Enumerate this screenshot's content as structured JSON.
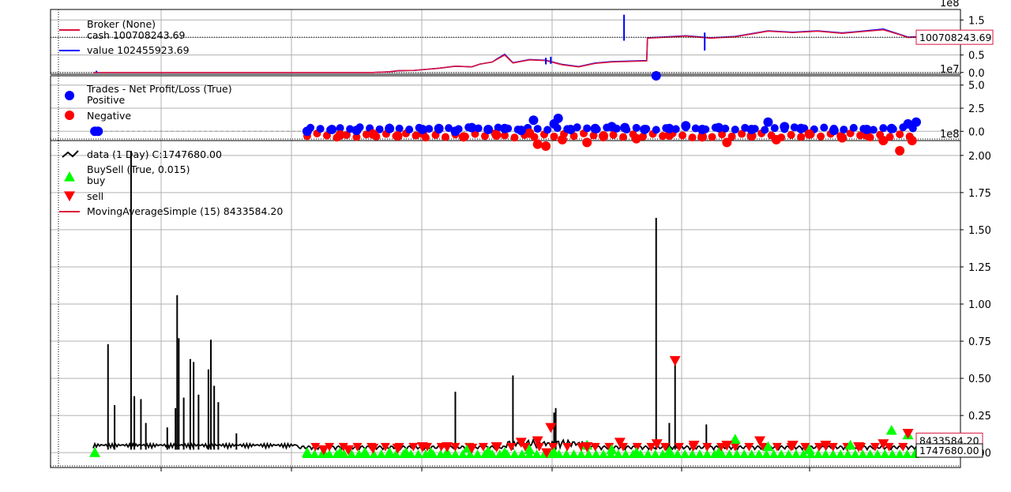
{
  "colors": {
    "cash": "#dc143c",
    "value": "#0000ff",
    "positive": "#0000ff",
    "negative": "#ff0000",
    "price": "#000000",
    "buy": "#00ff00",
    "sell": "#ff0000",
    "sma": "#dc143c",
    "grid": "#b0b0b0"
  },
  "chart_data": [
    {
      "type": "line",
      "panel": "broker",
      "exponent_label": "1e8",
      "ylim": [
        -0.05,
        1.8
      ],
      "yticks": [
        0.0,
        0.5,
        1.0,
        1.5
      ],
      "ytick_labels": [
        "0.0",
        "0.5",
        "1.0",
        "1.5"
      ],
      "grid": true,
      "legend_position": "upper-left",
      "legend_title": "Broker (None)",
      "series": [
        {
          "name": "cash 100708243.69",
          "role": "cash",
          "x": [
            0.0,
            0.08,
            0.14,
            0.2,
            0.26,
            0.3,
            0.34,
            0.36,
            0.37,
            0.39,
            0.42,
            0.44,
            0.46,
            0.47,
            0.485,
            0.49,
            0.5,
            0.51,
            0.53,
            0.55,
            0.57,
            0.59,
            0.61,
            0.63,
            0.6725,
            0.6735,
            0.69,
            0.72,
            0.75,
            0.78,
            0.82,
            0.85,
            0.88,
            0.91,
            0.93,
            0.96,
            0.98,
            0.99,
            1.0
          ],
          "values": [
            0.0,
            0.0,
            0.0,
            0.0,
            0.0,
            0.0,
            0.0,
            0.02,
            0.05,
            0.06,
            0.12,
            0.18,
            0.16,
            0.24,
            0.3,
            0.37,
            0.5,
            0.27,
            0.36,
            0.34,
            0.22,
            0.16,
            0.26,
            0.3,
            0.33,
            0.98,
            1.0,
            1.04,
            0.98,
            1.02,
            1.18,
            1.14,
            1.18,
            1.12,
            1.16,
            1.22,
            1.08,
            1.0,
            1.007
          ]
        },
        {
          "name": "value 102455923.69",
          "role": "value",
          "x": [
            0.0,
            0.04,
            0.08,
            0.14,
            0.2,
            0.26,
            0.3,
            0.34,
            0.36,
            0.37,
            0.39,
            0.42,
            0.44,
            0.46,
            0.47,
            0.485,
            0.49,
            0.5,
            0.51,
            0.53,
            0.55,
            0.57,
            0.59,
            0.61,
            0.63,
            0.6725,
            0.6735,
            0.69,
            0.72,
            0.75,
            0.78,
            0.82,
            0.85,
            0.88,
            0.91,
            0.93,
            0.96,
            0.98,
            0.99,
            1.0
          ],
          "values": [
            0.0,
            0.0,
            0.0,
            0.0,
            0.0,
            0.0,
            0.0,
            0.0,
            0.02,
            0.05,
            0.06,
            0.12,
            0.18,
            0.16,
            0.24,
            0.3,
            0.38,
            0.52,
            0.28,
            0.37,
            0.35,
            0.23,
            0.17,
            0.27,
            0.31,
            0.34,
            0.99,
            1.01,
            1.05,
            0.99,
            1.03,
            1.19,
            1.15,
            1.19,
            1.13,
            1.17,
            1.24,
            1.09,
            1.01,
            1.02
          ]
        }
      ],
      "spikes": [
        {
          "x": 0.004,
          "value": 0.05
        },
        {
          "x": 0.55,
          "value": 0.42
        },
        {
          "x": 0.556,
          "value": 0.45
        },
        {
          "x": 0.645,
          "value": 1.65
        },
        {
          "x": 0.743,
          "value": 1.14
        }
      ],
      "last_value_label": "100708243.69"
    },
    {
      "type": "scatter",
      "panel": "trades",
      "exponent_label": "1e7",
      "ylim": [
        -1.0,
        6.0
      ],
      "yticks": [
        0.0,
        2.5,
        5.0
      ],
      "ytick_labels": [
        "0.0",
        "2.5",
        "5.0"
      ],
      "grid": true,
      "legend_position": "upper-left",
      "legend_title": "Trades - Net Profit/Loss (True)",
      "series": [
        {
          "name": "Positive",
          "role": "positive"
        },
        {
          "name": "Negative",
          "role": "negative"
        }
      ],
      "positive_points": [
        [
          0.002,
          0.0
        ],
        [
          0.006,
          0.0
        ],
        [
          0.26,
          0.0
        ],
        [
          0.29,
          0.2
        ],
        [
          0.32,
          0.1
        ],
        [
          0.36,
          0.3
        ],
        [
          0.4,
          0.2
        ],
        [
          0.42,
          0.3
        ],
        [
          0.44,
          0.0
        ],
        [
          0.46,
          0.4
        ],
        [
          0.48,
          0.2
        ],
        [
          0.5,
          0.3
        ],
        [
          0.52,
          0.1
        ],
        [
          0.535,
          1.2
        ],
        [
          0.56,
          0.8
        ],
        [
          0.565,
          1.4
        ],
        [
          0.58,
          0.2
        ],
        [
          0.61,
          0.3
        ],
        [
          0.63,
          0.5
        ],
        [
          0.646,
          0.4
        ],
        [
          0.67,
          0.2
        ],
        [
          0.684,
          6.0
        ],
        [
          0.7,
          0.3
        ],
        [
          0.72,
          0.6
        ],
        [
          0.74,
          0.2
        ],
        [
          0.76,
          0.4
        ],
        [
          0.8,
          0.2
        ],
        [
          0.82,
          1.0
        ],
        [
          0.84,
          0.5
        ],
        [
          0.86,
          0.3
        ],
        [
          0.9,
          0.1
        ],
        [
          0.94,
          0.2
        ],
        [
          0.97,
          0.3
        ],
        [
          0.99,
          0.8
        ],
        [
          1.0,
          1.0
        ]
      ],
      "negative_points": [
        [
          0.3,
          -0.4
        ],
        [
          0.34,
          -0.3
        ],
        [
          0.37,
          -0.5
        ],
        [
          0.4,
          -0.2
        ],
        [
          0.45,
          -0.6
        ],
        [
          0.49,
          -0.4
        ],
        [
          0.53,
          -0.2
        ],
        [
          0.54,
          -1.4
        ],
        [
          0.55,
          -1.6
        ],
        [
          0.57,
          -0.9
        ],
        [
          0.6,
          -1.2
        ],
        [
          0.62,
          -0.5
        ],
        [
          0.66,
          -0.8
        ],
        [
          0.7,
          -0.4
        ],
        [
          0.74,
          -0.6
        ],
        [
          0.77,
          -1.2
        ],
        [
          0.8,
          -0.5
        ],
        [
          0.83,
          -0.9
        ],
        [
          0.87,
          -0.3
        ],
        [
          0.91,
          -0.7
        ],
        [
          0.94,
          -0.4
        ],
        [
          0.96,
          -1.0
        ],
        [
          0.98,
          -2.1
        ],
        [
          0.995,
          -1.0
        ]
      ],
      "zero_line": true
    },
    {
      "type": "line",
      "panel": "price",
      "exponent_label": "1e8",
      "ylim": [
        -0.1,
        2.1
      ],
      "yticks": [
        0.0,
        0.25,
        0.5,
        0.75,
        1.0,
        1.25,
        1.5,
        1.75,
        2.0
      ],
      "ytick_labels": [
        "0.00",
        "0.25",
        "0.50",
        "0.75",
        "1.00",
        "1.25",
        "1.50",
        "1.75",
        "2.00"
      ],
      "grid": true,
      "legend_position": "upper-left",
      "series": [
        {
          "name": "data (1 Day) C:1747680.00",
          "role": "price"
        },
        {
          "name": "buy",
          "role": "buy"
        },
        {
          "name": "sell",
          "role": "sell"
        },
        {
          "name": "MovingAverageSimple (15) 8433584.20",
          "role": "sma"
        }
      ],
      "legend_group_title": "BuySell (True, 0.015)",
      "price_spikes": [
        {
          "x": 0.018,
          "value": 0.73
        },
        {
          "x": 0.026,
          "value": 0.32
        },
        {
          "x": 0.046,
          "value": 2.03
        },
        {
          "x": 0.05,
          "value": 0.38
        },
        {
          "x": 0.058,
          "value": 0.36
        },
        {
          "x": 0.064,
          "value": 0.2
        },
        {
          "x": 0.09,
          "value": 0.17
        },
        {
          "x": 0.1,
          "value": 0.3
        },
        {
          "x": 0.102,
          "value": 1.06
        },
        {
          "x": 0.104,
          "value": 0.77
        },
        {
          "x": 0.11,
          "value": 0.37
        },
        {
          "x": 0.118,
          "value": 0.63
        },
        {
          "x": 0.122,
          "value": 0.61
        },
        {
          "x": 0.128,
          "value": 0.39
        },
        {
          "x": 0.14,
          "value": 0.56
        },
        {
          "x": 0.143,
          "value": 0.76
        },
        {
          "x": 0.147,
          "value": 0.45
        },
        {
          "x": 0.152,
          "value": 0.34
        },
        {
          "x": 0.174,
          "value": 0.13
        },
        {
          "x": 0.44,
          "value": 0.41
        },
        {
          "x": 0.51,
          "value": 0.52
        },
        {
          "x": 0.56,
          "value": 0.27
        },
        {
          "x": 0.562,
          "value": 0.3
        },
        {
          "x": 0.684,
          "value": 1.58
        },
        {
          "x": 0.7,
          "value": 0.2
        },
        {
          "x": 0.707,
          "value": 0.63
        },
        {
          "x": 0.745,
          "value": 0.19
        }
      ],
      "buy_markers": [
        [
          0.002,
          0.0
        ],
        [
          0.26,
          0.0
        ],
        [
          0.28,
          0.0
        ],
        [
          0.3,
          0.0
        ],
        [
          0.33,
          0.0
        ],
        [
          0.36,
          0.0
        ],
        [
          0.38,
          0.0
        ],
        [
          0.41,
          0.0
        ],
        [
          0.43,
          0.0
        ],
        [
          0.455,
          0.03
        ],
        [
          0.48,
          0.01
        ],
        [
          0.5,
          0.0
        ],
        [
          0.53,
          0.02
        ],
        [
          0.56,
          0.0
        ],
        [
          0.6,
          0.05
        ],
        [
          0.63,
          0.02
        ],
        [
          0.66,
          0.0
        ],
        [
          0.7,
          0.01
        ],
        [
          0.76,
          0.0
        ],
        [
          0.78,
          0.09
        ],
        [
          0.82,
          0.04
        ],
        [
          0.87,
          0.02
        ],
        [
          0.92,
          0.05
        ],
        [
          0.97,
          0.15
        ],
        [
          0.99,
          0.12
        ],
        [
          1.0,
          0.0
        ]
      ],
      "sell_markers": [
        [
          0.28,
          0.02
        ],
        [
          0.31,
          0.02
        ],
        [
          0.34,
          0.03
        ],
        [
          0.37,
          0.03
        ],
        [
          0.4,
          0.04
        ],
        [
          0.43,
          0.04
        ],
        [
          0.46,
          0.03
        ],
        [
          0.49,
          0.04
        ],
        [
          0.52,
          0.07
        ],
        [
          0.54,
          0.08
        ],
        [
          0.551,
          0.0
        ],
        [
          0.556,
          0.17
        ],
        [
          0.6,
          0.04
        ],
        [
          0.64,
          0.07
        ],
        [
          0.685,
          0.06
        ],
        [
          0.707,
          0.62
        ],
        [
          0.73,
          0.05
        ],
        [
          0.77,
          0.05
        ],
        [
          0.81,
          0.08
        ],
        [
          0.85,
          0.05
        ],
        [
          0.89,
          0.05
        ],
        [
          0.93,
          0.04
        ],
        [
          0.96,
          0.06
        ],
        [
          0.99,
          0.13
        ]
      ],
      "sma_label": "8433584.20",
      "price_label": "1747680.00"
    }
  ]
}
